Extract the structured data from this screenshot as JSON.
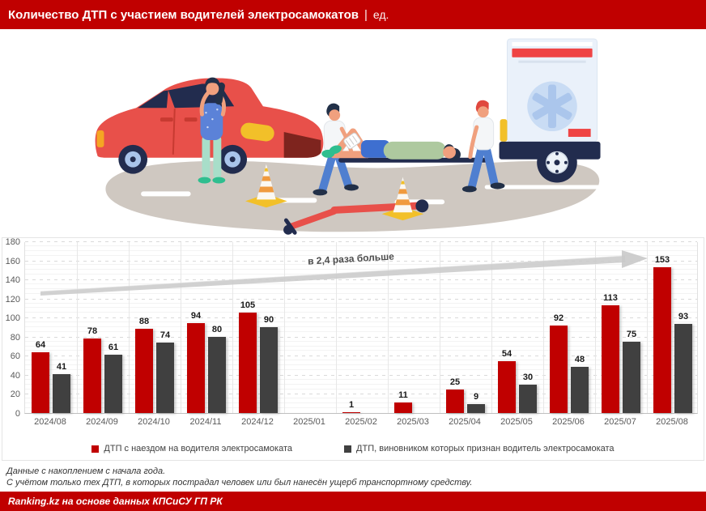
{
  "header": {
    "title": "Количество ДТП с участием водителей электросамокатов",
    "separator": "|",
    "unit": "ед."
  },
  "colors": {
    "accent": "#C00000",
    "bar_primary": "#C00000",
    "bar_secondary": "#404040"
  },
  "chart_data": {
    "type": "bar",
    "title": "Количество ДТП с участием водителей электросамокатов, ед.",
    "categories": [
      "2024/08",
      "2024/09",
      "2024/10",
      "2024/11",
      "2024/12",
      "2025/01",
      "2025/02",
      "2025/03",
      "2025/04",
      "2025/05",
      "2025/06",
      "2025/07",
      "2025/08"
    ],
    "series": [
      {
        "name": "ДТП с наездом на водителя электросамоката",
        "color": "#C00000",
        "values": [
          64,
          78,
          88,
          94,
          105,
          0,
          1,
          11,
          25,
          54,
          92,
          113,
          153
        ]
      },
      {
        "name": "ДТП, виновником которых признан водитель электросамоката",
        "color": "#404040",
        "values": [
          41,
          61,
          74,
          80,
          90,
          0,
          0,
          0,
          9,
          30,
          48,
          75,
          93
        ]
      }
    ],
    "ylim": [
      0,
      180
    ],
    "ytick_step": 20,
    "grid": true,
    "legend_position": "bottom",
    "annotation": {
      "text": "в 2,4 раза больше"
    }
  },
  "footnotes": {
    "line1": "Данные с накоплением с начала года.",
    "line2": "С учётом только тех ДТП, в которых пострадал человек или был нанесён ущерб транспортному средству."
  },
  "footer": {
    "text": "Ranking.kz на основе данных КПСиСУ ГП РК"
  }
}
